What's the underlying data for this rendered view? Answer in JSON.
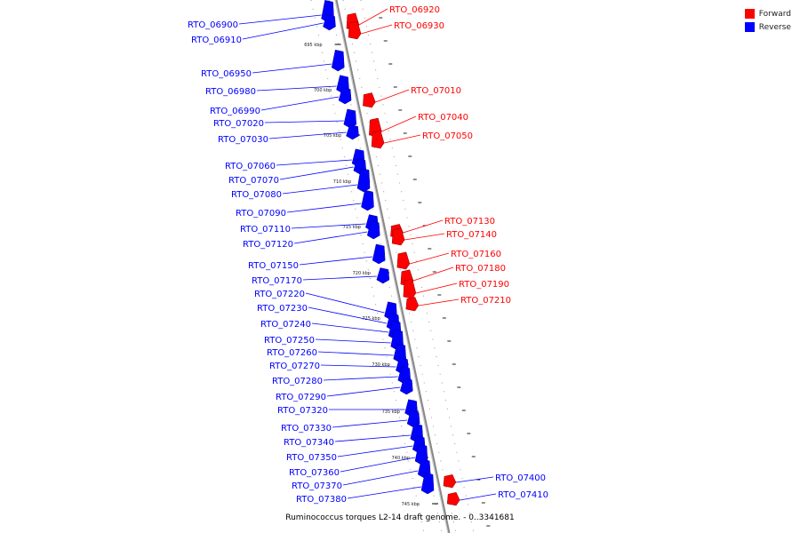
{
  "legend": {
    "items": [
      {
        "label": "Forward",
        "color": "#ff0000"
      },
      {
        "label": "Reverse",
        "color": "#0000ff"
      }
    ]
  },
  "caption": "Ruminococcus torques L2-14 draft genome. - 0..3341681",
  "colors": {
    "forward": "#ff0000",
    "reverse": "#0000ff",
    "backbone": "#888888"
  },
  "kbp_ticks": [
    "695 kbp",
    "700 kbp",
    "705 kbp",
    "710 kbp",
    "715 kbp",
    "720 kbp",
    "725 kbp",
    "730 kbp",
    "735 kbp",
    "740 kbp",
    "745 kbp"
  ],
  "genes": {
    "reverse": [
      {
        "id": "RTO_06900",
        "size": 1.3
      },
      {
        "id": "RTO_06910",
        "size": 0.5
      },
      {
        "id": "RTO_06950",
        "size": 1.2
      },
      {
        "id": "RTO_06980",
        "size": 0.8
      },
      {
        "id": "RTO_06990",
        "size": 0.6
      },
      {
        "id": "RTO_07020",
        "size": 0.9
      },
      {
        "id": "RTO_07030",
        "size": 0.4
      },
      {
        "id": "RTO_07060",
        "size": 0.8
      },
      {
        "id": "RTO_07070",
        "size": 0.5
      },
      {
        "id": "RTO_07080",
        "size": 1.5
      },
      {
        "id": "RTO_07090",
        "size": 1.1
      },
      {
        "id": "RTO_07110",
        "size": 0.6
      },
      {
        "id": "RTO_07120",
        "size": 0.8
      },
      {
        "id": "RTO_07150",
        "size": 1.0
      },
      {
        "id": "RTO_07170",
        "size": 0.5
      },
      {
        "id": "RTO_07220",
        "size": 0.8
      },
      {
        "id": "RTO_07230",
        "size": 0.7
      },
      {
        "id": "RTO_07240",
        "size": 0.9
      },
      {
        "id": "RTO_07250",
        "size": 1.1
      },
      {
        "id": "RTO_07260",
        "size": 0.9
      },
      {
        "id": "RTO_07270",
        "size": 0.6
      },
      {
        "id": "RTO_07280",
        "size": 0.7
      },
      {
        "id": "RTO_07290",
        "size": 0.6
      },
      {
        "id": "RTO_07320",
        "size": 0.7
      },
      {
        "id": "RTO_07330",
        "size": 0.6
      },
      {
        "id": "RTO_07340",
        "size": 0.9
      },
      {
        "id": "RTO_07350",
        "size": 0.7
      },
      {
        "id": "RTO_07360",
        "size": 1.1
      },
      {
        "id": "RTO_07370",
        "size": 0.9
      },
      {
        "id": "RTO_07380",
        "size": 1.2
      }
    ],
    "forward": [
      {
        "id": "RTO_06920",
        "size": 0.8
      },
      {
        "id": "RTO_06930",
        "size": 0.9
      },
      {
        "id": "RTO_07010",
        "size": 0.5
      },
      {
        "id": "RTO_07040",
        "size": 1.0
      },
      {
        "id": "RTO_07050",
        "size": 0.9
      },
      {
        "id": "RTO_07130",
        "size": 0.4
      },
      {
        "id": "RTO_07140",
        "size": 0.8
      },
      {
        "id": "RTO_07160",
        "size": 0.8
      },
      {
        "id": "RTO_07180",
        "size": 0.7
      },
      {
        "id": "RTO_07190",
        "size": 1.1
      },
      {
        "id": "RTO_07210",
        "size": 0.4
      },
      {
        "id": "RTO_07400",
        "size": 0.3
      },
      {
        "id": "RTO_07410",
        "size": 0.3
      }
    ]
  }
}
